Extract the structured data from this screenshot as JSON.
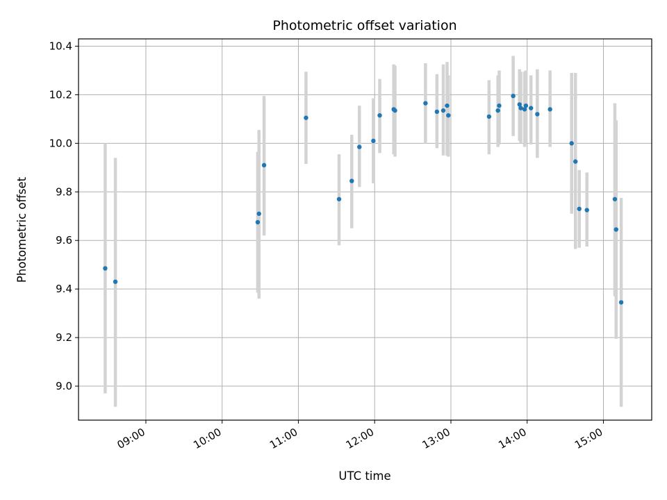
{
  "chart_data": {
    "type": "scatter",
    "title": "Photometric offset variation",
    "xlabel": "UTC time",
    "ylabel": "Photometric offset",
    "x_axis_type": "time",
    "xlim": [
      "08:07",
      "15:38"
    ],
    "ylim": [
      8.86,
      10.43
    ],
    "x_ticks": [
      "09:00",
      "10:00",
      "11:00",
      "12:00",
      "13:00",
      "14:00",
      "15:00"
    ],
    "y_ticks": [
      9.0,
      9.2,
      9.4,
      9.6,
      9.8,
      10.0,
      10.2,
      10.4
    ],
    "y_tick_labels": [
      "9.0",
      "9.2",
      "9.4",
      "9.6",
      "9.8",
      "10.0",
      "10.2",
      "10.4"
    ],
    "grid": true,
    "marker_color": "#1f77b4",
    "errorbar_color": "#d3d3d3",
    "points": [
      {
        "time": "08:28",
        "y": 9.485,
        "err_low": 8.97,
        "err_high": 10.0
      },
      {
        "time": "08:36",
        "y": 9.43,
        "err_low": 8.915,
        "err_high": 9.94
      },
      {
        "time": "10:28",
        "y": 9.675,
        "err_low": 9.385,
        "err_high": 9.965
      },
      {
        "time": "10:29",
        "y": 9.71,
        "err_low": 9.36,
        "err_high": 10.055
      },
      {
        "time": "10:33",
        "y": 9.91,
        "err_low": 9.62,
        "err_high": 10.195
      },
      {
        "time": "11:06",
        "y": 10.105,
        "err_low": 9.915,
        "err_high": 10.295
      },
      {
        "time": "11:32",
        "y": 9.77,
        "err_low": 9.58,
        "err_high": 9.955
      },
      {
        "time": "11:42",
        "y": 9.845,
        "err_low": 9.65,
        "err_high": 10.035
      },
      {
        "time": "11:48",
        "y": 9.985,
        "err_low": 9.82,
        "err_high": 10.155
      },
      {
        "time": "11:59",
        "y": 10.01,
        "err_low": 9.835,
        "err_high": 10.185
      },
      {
        "time": "12:04",
        "y": 10.115,
        "err_low": 9.96,
        "err_high": 10.265
      },
      {
        "time": "12:15",
        "y": 10.14,
        "err_low": 9.955,
        "err_high": 10.325
      },
      {
        "time": "12:16",
        "y": 10.135,
        "err_low": 9.945,
        "err_high": 10.32
      },
      {
        "time": "12:40",
        "y": 10.165,
        "err_low": 10.0,
        "err_high": 10.33
      },
      {
        "time": "12:49",
        "y": 10.13,
        "err_low": 9.98,
        "err_high": 10.285
      },
      {
        "time": "12:54",
        "y": 10.135,
        "err_low": 9.95,
        "err_high": 10.325
      },
      {
        "time": "12:57",
        "y": 10.155,
        "err_low": 9.95,
        "err_high": 10.335
      },
      {
        "time": "12:58",
        "y": 10.115,
        "err_low": 9.945,
        "err_high": 10.28
      },
      {
        "time": "13:30",
        "y": 10.11,
        "err_low": 9.955,
        "err_high": 10.26
      },
      {
        "time": "13:37",
        "y": 10.135,
        "err_low": 9.985,
        "err_high": 10.28
      },
      {
        "time": "13:38",
        "y": 10.155,
        "err_low": 9.995,
        "err_high": 10.3
      },
      {
        "time": "13:49",
        "y": 10.195,
        "err_low": 10.03,
        "err_high": 10.36
      },
      {
        "time": "13:54",
        "y": 10.16,
        "err_low": 10.01,
        "err_high": 10.305
      },
      {
        "time": "13:55",
        "y": 10.145,
        "err_low": 10.0,
        "err_high": 10.295
      },
      {
        "time": "13:58",
        "y": 10.14,
        "err_low": 9.985,
        "err_high": 10.295
      },
      {
        "time": "13:59",
        "y": 10.155,
        "err_low": 10.0,
        "err_high": 10.3
      },
      {
        "time": "14:03",
        "y": 10.145,
        "err_low": 9.995,
        "err_high": 10.28
      },
      {
        "time": "14:08",
        "y": 10.12,
        "err_low": 9.94,
        "err_high": 10.305
      },
      {
        "time": "14:18",
        "y": 10.14,
        "err_low": 9.985,
        "err_high": 10.3
      },
      {
        "time": "14:35",
        "y": 10.0,
        "err_low": 9.71,
        "err_high": 10.29
      },
      {
        "time": "14:38",
        "y": 9.925,
        "err_low": 9.565,
        "err_high": 10.29
      },
      {
        "time": "14:41",
        "y": 9.73,
        "err_low": 9.57,
        "err_high": 9.89
      },
      {
        "time": "14:47",
        "y": 9.725,
        "err_low": 9.575,
        "err_high": 9.88
      },
      {
        "time": "15:09",
        "y": 9.77,
        "err_low": 9.37,
        "err_high": 10.165
      },
      {
        "time": "15:10",
        "y": 9.645,
        "err_low": 9.195,
        "err_high": 10.095
      },
      {
        "time": "15:14",
        "y": 9.345,
        "err_low": 8.915,
        "err_high": 9.775
      }
    ]
  }
}
